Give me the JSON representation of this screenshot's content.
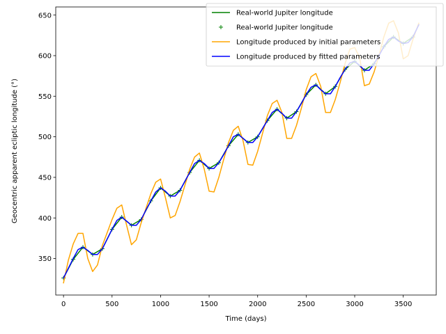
{
  "chart_data": {
    "type": "line",
    "title": "",
    "xlabel": "Time (days)",
    "ylabel": "Geocentric apparent ecliptic longitude (°)",
    "xlim": [
      -80,
      3840
    ],
    "ylim": [
      305,
      660
    ],
    "xticks": [
      0,
      500,
      1000,
      1500,
      2000,
      2500,
      3000,
      3500
    ],
    "yticks": [
      350,
      400,
      450,
      500,
      550,
      600,
      650
    ],
    "grid": false,
    "legend_position": "top-right",
    "model": {
      "description": "sampled series",
      "t_start": 0,
      "t_end": 3660,
      "t_step": 10
    },
    "series": [
      {
        "name": "Real-world Jupiter longitude",
        "style": "line",
        "color": "#008000",
        "x": [
          0,
          100,
          200,
          300,
          400,
          500,
          600,
          700,
          800,
          900,
          1000,
          1100,
          1200,
          1300,
          1400,
          1500,
          1600,
          1700,
          1800,
          1900,
          2000,
          2100,
          2200,
          2300,
          2400,
          2500,
          2600,
          2700,
          2800,
          2900,
          3000,
          3100,
          3200,
          3300,
          3400,
          3500,
          3600,
          3660
        ],
        "values": [
          326,
          349,
          364,
          355,
          362,
          386,
          401,
          391,
          398,
          421,
          437,
          427,
          434,
          456,
          471,
          461,
          468,
          489,
          503,
          493,
          500,
          520,
          534,
          523,
          531,
          552,
          564,
          553,
          562,
          583,
          593,
          582,
          590,
          611,
          623,
          615,
          623,
          638
        ]
      },
      {
        "name": "Real-world Jupiter longitude",
        "style": "marker",
        "marker": "+",
        "color": "#008000",
        "x": [
          0,
          100,
          200,
          300,
          400,
          500,
          600,
          700,
          800,
          900,
          1000,
          1100,
          1200,
          1300,
          1400,
          1500,
          1600,
          1700,
          1800,
          1900,
          2000,
          2100,
          2200,
          2300,
          2400,
          2500,
          2600,
          2700,
          2800,
          2900,
          3000,
          3100,
          3200,
          3300,
          3400,
          3500,
          3600
        ],
        "values": [
          326,
          349,
          364,
          355,
          362,
          386,
          401,
          391,
          398,
          421,
          437,
          427,
          434,
          456,
          471,
          461,
          468,
          489,
          503,
          493,
          500,
          520,
          534,
          523,
          531,
          552,
          564,
          553,
          562,
          583,
          593,
          582,
          590,
          611,
          623,
          615,
          623
        ]
      },
      {
        "name": "Longitude produced by initial parameters",
        "style": "line",
        "color": "#ffa500",
        "x": [
          0,
          50,
          100,
          150,
          200,
          250,
          300,
          350,
          400,
          450,
          500,
          550,
          600,
          650,
          700,
          750,
          800,
          850,
          900,
          950,
          1000,
          1050,
          1100,
          1150,
          1200,
          1250,
          1300,
          1350,
          1400,
          1450,
          1500,
          1550,
          1600,
          1650,
          1700,
          1750,
          1800,
          1850,
          1900,
          1950,
          2000,
          2050,
          2100,
          2150,
          2200,
          2250,
          2300,
          2350,
          2400,
          2450,
          2500,
          2550,
          2600,
          2650,
          2700,
          2750,
          2800,
          2850,
          2900,
          2950,
          3000,
          3050,
          3100,
          3150,
          3200,
          3250,
          3300,
          3350,
          3400,
          3450,
          3500,
          3550,
          3600,
          3660
        ],
        "values": [
          320,
          348,
          368,
          381,
          381,
          350,
          334,
          342,
          366,
          382,
          398,
          412,
          416,
          391,
          367,
          373,
          394,
          412,
          430,
          444,
          448,
          425,
          400,
          403,
          420,
          440,
          460,
          475,
          480,
          460,
          433,
          432,
          450,
          472,
          493,
          508,
          513,
          495,
          466,
          465,
          482,
          504,
          526,
          541,
          545,
          530,
          498,
          498,
          514,
          535,
          558,
          574,
          578,
          562,
          530,
          530,
          546,
          567,
          590,
          608,
          610,
          598,
          563,
          565,
          580,
          600,
          623,
          640,
          643,
          628,
          596,
          600,
          620,
          640
        ]
      },
      {
        "name": "Longitude produced by fitted parameters",
        "style": "line",
        "color": "#0000ff",
        "x": [
          0,
          50,
          100,
          150,
          200,
          250,
          300,
          350,
          400,
          450,
          500,
          550,
          600,
          650,
          700,
          750,
          800,
          850,
          900,
          950,
          1000,
          1050,
          1100,
          1150,
          1200,
          1250,
          1300,
          1350,
          1400,
          1450,
          1500,
          1550,
          1600,
          1650,
          1700,
          1750,
          1800,
          1850,
          1900,
          1950,
          2000,
          2050,
          2100,
          2150,
          2200,
          2250,
          2300,
          2350,
          2400,
          2450,
          2500,
          2550,
          2600,
          2650,
          2700,
          2750,
          2800,
          2850,
          2900,
          2950,
          3000,
          3050,
          3100,
          3150,
          3200,
          3250,
          3300,
          3350,
          3400,
          3450,
          3500,
          3550,
          3600,
          3660
        ],
        "values": [
          326,
          338,
          350,
          361,
          364,
          360,
          355,
          355,
          362,
          374,
          386,
          397,
          401,
          396,
          391,
          391,
          398,
          410,
          421,
          432,
          437,
          433,
          427,
          427,
          434,
          445,
          456,
          467,
          471,
          467,
          461,
          461,
          468,
          478,
          489,
          500,
          503,
          498,
          493,
          493,
          500,
          510,
          520,
          530,
          534,
          529,
          523,
          523,
          531,
          541,
          552,
          561,
          564,
          558,
          553,
          553,
          562,
          573,
          583,
          591,
          593,
          588,
          582,
          582,
          590,
          600,
          611,
          620,
          623,
          618,
          615,
          616,
          623,
          638
        ]
      }
    ]
  }
}
